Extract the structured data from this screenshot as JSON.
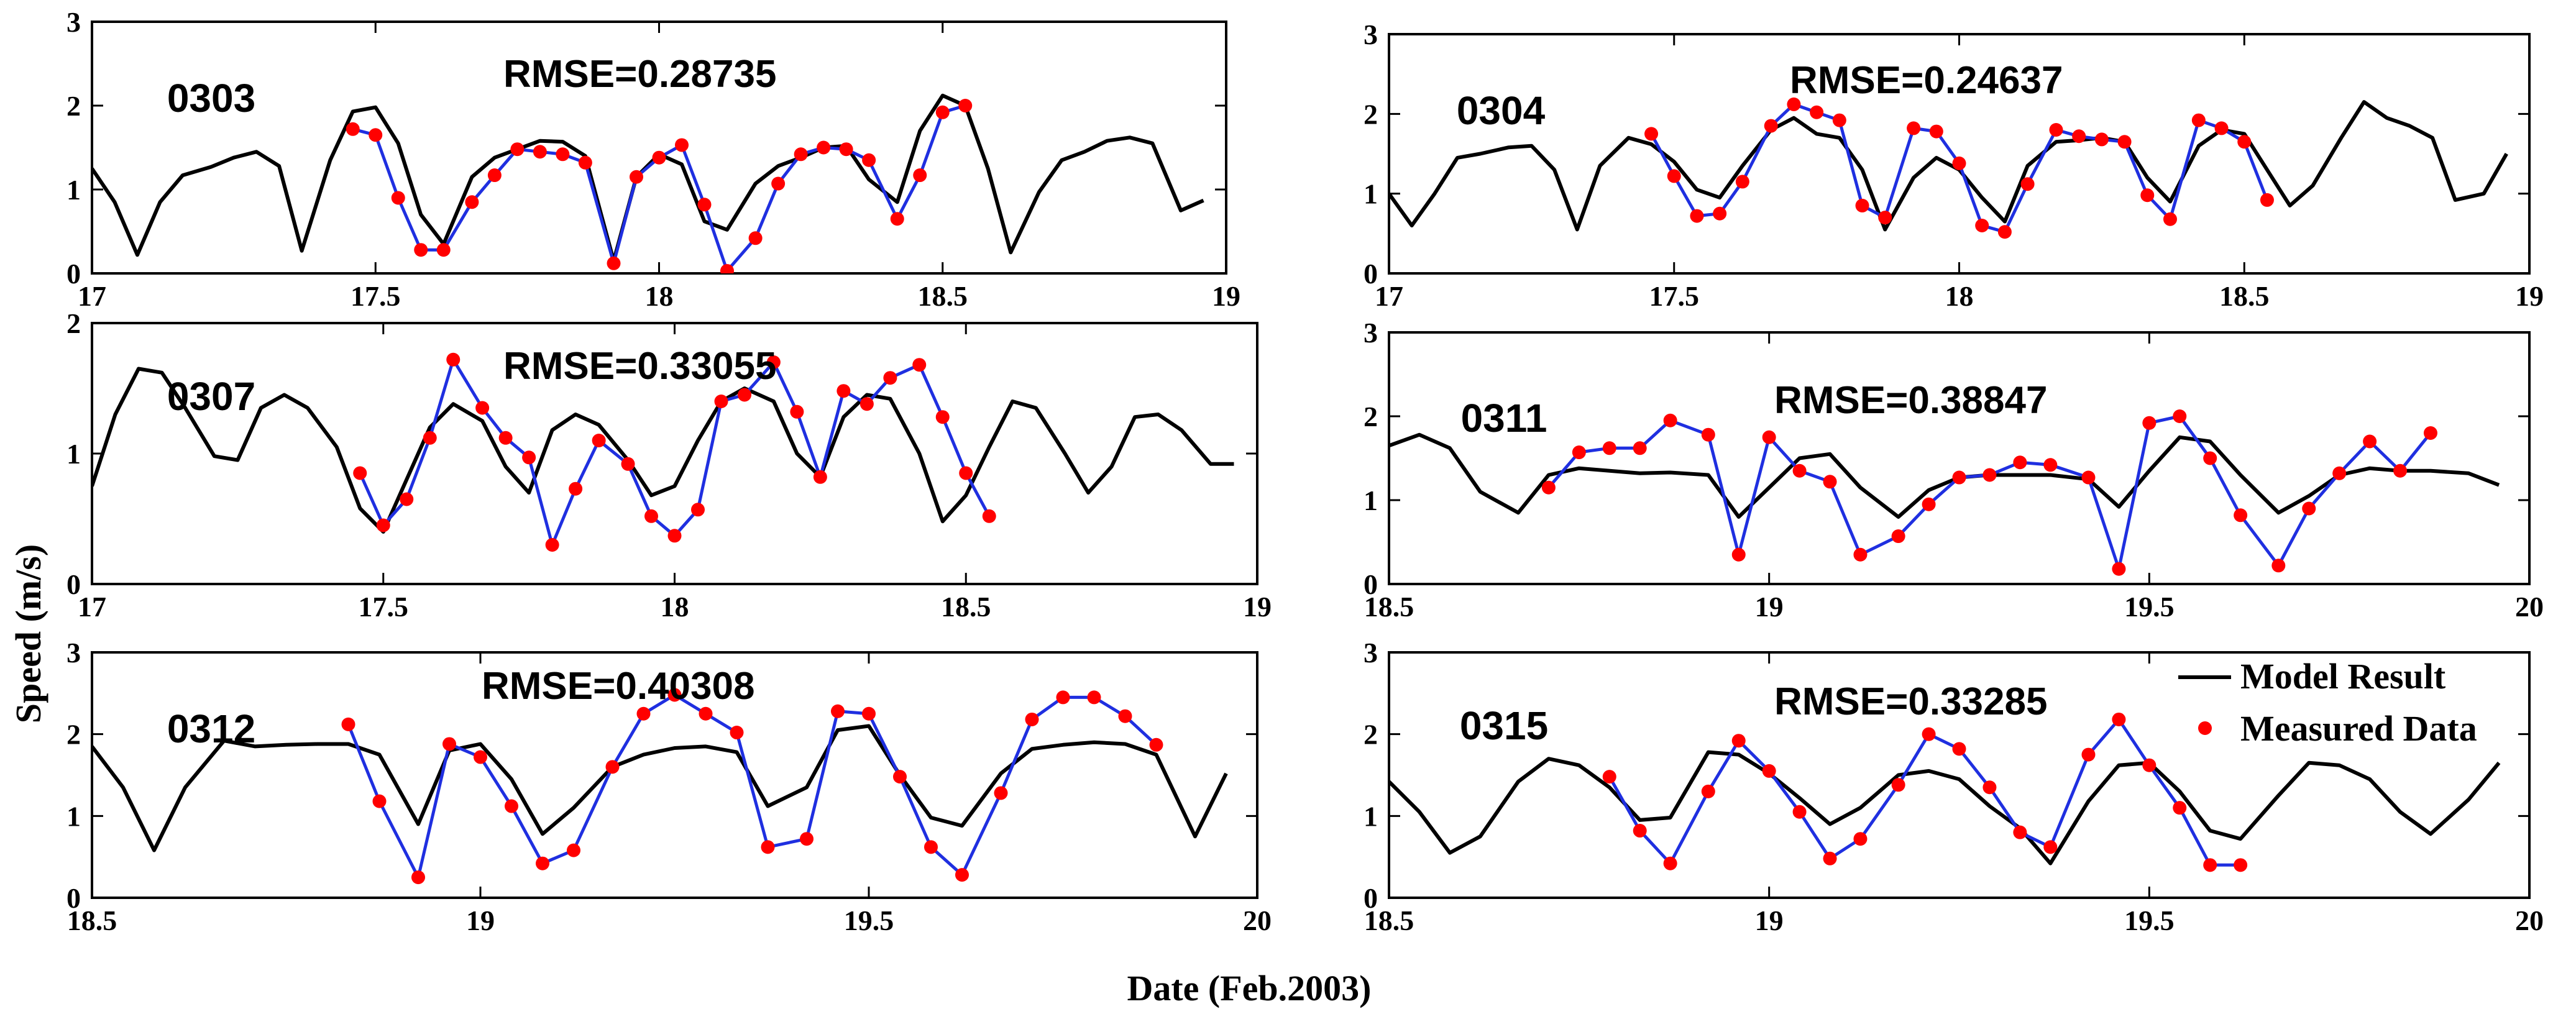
{
  "figure": {
    "ylabel": "Speed (m/s)",
    "xlabel": "Date (Feb.2003)",
    "legend": {
      "model_label": "Model Result",
      "measured_label": "Measured Data",
      "location": "top-right of bottom-right panel"
    },
    "colors": {
      "model": "#000000",
      "measured_line": "#1f2fe0",
      "measured_dot": "#ff0000"
    }
  },
  "chart_data": [
    {
      "type": "line",
      "name": "0303",
      "rmse_label": "RMSE=0.28735",
      "xlim": [
        17,
        19
      ],
      "ylim": [
        0,
        3
      ],
      "xticks": [
        17,
        17.5,
        18,
        18.5,
        19
      ],
      "xtick_labels": [
        "17",
        "17.5",
        "18",
        "18.5",
        "19"
      ],
      "yticks": [
        0,
        1,
        2,
        3
      ],
      "ytick_labels": [
        "0",
        "1",
        "2",
        "3"
      ],
      "model": {
        "x": [
          17,
          17.04,
          17.08,
          17.12,
          17.16,
          17.21,
          17.25,
          17.29,
          17.33,
          17.37,
          17.42,
          17.46,
          17.5,
          17.54,
          17.58,
          17.62,
          17.67,
          17.71,
          17.75,
          17.79,
          17.83,
          17.87,
          17.92,
          17.96,
          18,
          18.04,
          18.08,
          18.12,
          18.17,
          18.21,
          18.25,
          18.29,
          18.33,
          18.37,
          18.42,
          18.46,
          18.5,
          18.54,
          18.58,
          18.62,
          18.67,
          18.71,
          18.75,
          18.79,
          18.83,
          18.87,
          18.92,
          18.96
        ],
        "y": [
          1.25,
          0.85,
          0.22,
          0.85,
          1.17,
          1.27,
          1.38,
          1.45,
          1.28,
          0.27,
          1.35,
          1.93,
          1.98,
          1.55,
          0.7,
          0.35,
          1.15,
          1.38,
          1.48,
          1.58,
          1.57,
          1.4,
          0.15,
          1.15,
          1.42,
          1.3,
          0.62,
          0.52,
          1.07,
          1.28,
          1.38,
          1.5,
          1.52,
          1.12,
          0.85,
          1.7,
          2.12,
          2.0,
          1.25,
          0.25,
          0.97,
          1.35,
          1.45,
          1.58,
          1.62,
          1.55,
          0.75,
          0.87
        ]
      },
      "measured": {
        "x": [
          17.46,
          17.5,
          17.54,
          17.58,
          17.62,
          17.67,
          17.71,
          17.75,
          17.79,
          17.83,
          17.87,
          17.92,
          17.96,
          18,
          18.04,
          18.08,
          18.12,
          18.17,
          18.21,
          18.25,
          18.29,
          18.33,
          18.37,
          18.42,
          18.46,
          18.5,
          18.54
        ],
        "y": [
          1.72,
          1.65,
          0.9,
          0.28,
          0.28,
          0.85,
          1.17,
          1.48,
          1.45,
          1.42,
          1.32,
          0.12,
          1.15,
          1.38,
          1.53,
          0.82,
          0.03,
          0.42,
          1.07,
          1.42,
          1.5,
          1.48,
          1.35,
          0.65,
          1.17,
          1.92,
          2.0
        ]
      }
    },
    {
      "type": "line",
      "name": "0304",
      "rmse_label": "RMSE=0.24637",
      "xlim": [
        17,
        19
      ],
      "ylim": [
        0,
        3
      ],
      "xticks": [
        17,
        17.5,
        18,
        18.5,
        19
      ],
      "xtick_labels": [
        "17",
        "17.5",
        "18",
        "18.5",
        "19"
      ],
      "yticks": [
        0,
        1,
        2,
        3
      ],
      "ytick_labels": [
        "0",
        "1",
        "2",
        "3"
      ],
      "model": {
        "x": [
          17,
          17.04,
          17.08,
          17.12,
          17.16,
          17.21,
          17.25,
          17.29,
          17.33,
          17.37,
          17.42,
          17.46,
          17.5,
          17.54,
          17.58,
          17.62,
          17.67,
          17.71,
          17.75,
          17.79,
          17.83,
          17.87,
          17.92,
          17.96,
          18,
          18.04,
          18.08,
          18.12,
          18.17,
          18.21,
          18.25,
          18.29,
          18.33,
          18.37,
          18.42,
          18.46,
          18.5,
          18.54,
          18.58,
          18.62,
          18.67,
          18.71,
          18.75,
          18.79,
          18.83,
          18.87,
          18.92,
          18.96
        ],
        "y": [
          1.0,
          0.6,
          1.0,
          1.45,
          1.5,
          1.58,
          1.6,
          1.3,
          0.55,
          1.35,
          1.7,
          1.62,
          1.4,
          1.05,
          0.95,
          1.35,
          1.8,
          1.95,
          1.75,
          1.7,
          1.3,
          0.55,
          1.2,
          1.45,
          1.3,
          0.95,
          0.65,
          1.35,
          1.65,
          1.67,
          1.7,
          1.65,
          1.2,
          0.9,
          1.6,
          1.8,
          1.75,
          1.3,
          0.85,
          1.1,
          1.7,
          2.15,
          1.95,
          1.85,
          1.7,
          0.92,
          1.0,
          1.5
        ]
      },
      "measured": {
        "x": [
          17.46,
          17.5,
          17.54,
          17.58,
          17.62,
          17.67,
          17.71,
          17.75,
          17.79,
          17.83,
          17.87,
          17.92,
          17.96,
          18,
          18.04,
          18.08,
          18.12,
          18.17,
          18.21,
          18.25,
          18.29,
          18.33,
          18.37,
          18.42,
          18.46,
          18.5,
          18.54
        ],
        "y": [
          1.75,
          1.22,
          0.72,
          0.75,
          1.15,
          1.85,
          2.12,
          2.02,
          1.92,
          0.85,
          0.7,
          1.82,
          1.78,
          1.38,
          0.6,
          0.52,
          1.12,
          1.8,
          1.72,
          1.68,
          1.65,
          0.98,
          0.68,
          1.92,
          1.82,
          1.65,
          0.92
        ]
      }
    },
    {
      "type": "line",
      "name": "0307",
      "rmse_label": "RMSE=0.33055",
      "xlim": [
        17,
        19
      ],
      "ylim": [
        0,
        2
      ],
      "xticks": [
        17,
        17.5,
        18,
        18.5,
        19
      ],
      "xtick_labels": [
        "17",
        "17.5",
        "18",
        "18.5",
        "19"
      ],
      "yticks": [
        0,
        1,
        2
      ],
      "ytick_labels": [
        "0",
        "1",
        "2"
      ],
      "model": {
        "x": [
          17,
          17.04,
          17.08,
          17.12,
          17.16,
          17.21,
          17.25,
          17.29,
          17.33,
          17.37,
          17.42,
          17.46,
          17.5,
          17.54,
          17.58,
          17.62,
          17.67,
          17.71,
          17.75,
          17.79,
          17.83,
          17.87,
          17.92,
          17.96,
          18,
          18.04,
          18.08,
          18.12,
          18.17,
          18.21,
          18.25,
          18.29,
          18.33,
          18.37,
          18.42,
          18.46,
          18.5,
          18.54,
          18.58,
          18.62,
          18.67,
          18.71,
          18.75,
          18.79,
          18.83,
          18.87,
          18.92,
          18.96
        ],
        "y": [
          0.75,
          1.3,
          1.65,
          1.62,
          1.35,
          0.98,
          0.95,
          1.35,
          1.45,
          1.35,
          1.05,
          0.58,
          0.4,
          0.8,
          1.2,
          1.38,
          1.25,
          0.9,
          0.7,
          1.18,
          1.3,
          1.22,
          0.95,
          0.68,
          0.75,
          1.1,
          1.4,
          1.5,
          1.4,
          1.0,
          0.82,
          1.28,
          1.45,
          1.42,
          1.0,
          0.48,
          0.68,
          1.05,
          1.4,
          1.35,
          1.0,
          0.7,
          0.9,
          1.28,
          1.3,
          1.18,
          0.92,
          0.92
        ]
      },
      "measured": {
        "x": [
          17.46,
          17.5,
          17.54,
          17.58,
          17.62,
          17.67,
          17.71,
          17.75,
          17.79,
          17.83,
          17.87,
          17.92,
          17.96,
          18,
          18.04,
          18.08,
          18.12,
          18.17,
          18.21,
          18.25,
          18.29,
          18.33,
          18.37,
          18.42,
          18.46,
          18.5,
          18.54
        ],
        "y": [
          0.85,
          0.45,
          0.65,
          1.12,
          1.72,
          1.35,
          1.12,
          0.97,
          0.3,
          0.73,
          1.1,
          0.92,
          0.52,
          0.37,
          0.57,
          1.4,
          1.45,
          1.7,
          1.32,
          0.82,
          1.48,
          1.38,
          1.58,
          1.68,
          1.28,
          0.85,
          0.52
        ]
      }
    },
    {
      "type": "line",
      "name": "0311",
      "rmse_label": "RMSE=0.38847",
      "xlim": [
        18.5,
        20
      ],
      "ylim": [
        0,
        3
      ],
      "xticks": [
        18.5,
        19,
        19.5,
        20
      ],
      "xtick_labels": [
        "18.5",
        "19",
        "19.5",
        "20"
      ],
      "yticks": [
        0,
        1,
        2,
        3
      ],
      "ytick_labels": [
        "0",
        "1",
        "2",
        "3"
      ],
      "model": {
        "x": [
          18.5,
          18.54,
          18.58,
          18.62,
          18.67,
          18.71,
          18.75,
          18.79,
          18.83,
          18.87,
          18.92,
          18.96,
          19,
          19.04,
          19.08,
          19.12,
          19.17,
          19.21,
          19.25,
          19.29,
          19.33,
          19.37,
          19.42,
          19.46,
          19.5,
          19.54,
          19.58,
          19.62,
          19.67,
          19.71,
          19.75,
          19.79,
          19.83,
          19.87,
          19.92,
          19.96
        ],
        "y": [
          1.65,
          1.78,
          1.62,
          1.1,
          0.85,
          1.3,
          1.38,
          1.35,
          1.32,
          1.33,
          1.3,
          0.8,
          1.15,
          1.5,
          1.55,
          1.15,
          0.8,
          1.12,
          1.27,
          1.3,
          1.3,
          1.3,
          1.25,
          0.92,
          1.35,
          1.75,
          1.7,
          1.3,
          0.85,
          1.05,
          1.3,
          1.38,
          1.35,
          1.35,
          1.32,
          1.18
        ]
      },
      "measured": {
        "x": [
          18.71,
          18.75,
          18.79,
          18.83,
          18.87,
          18.92,
          18.96,
          19,
          19.04,
          19.08,
          19.12,
          19.17,
          19.21,
          19.25,
          19.29,
          19.33,
          19.37,
          19.42,
          19.46,
          19.5,
          19.54,
          19.58,
          19.62,
          19.67,
          19.71,
          19.75,
          19.79,
          19.83,
          19.87
        ],
        "y": [
          1.15,
          1.57,
          1.62,
          1.62,
          1.95,
          1.78,
          0.35,
          1.75,
          1.35,
          1.22,
          0.35,
          0.57,
          0.95,
          1.27,
          1.3,
          1.45,
          1.42,
          1.27,
          0.18,
          1.92,
          2.0,
          1.5,
          0.82,
          0.22,
          0.9,
          1.32,
          1.7,
          1.35,
          1.8
        ]
      }
    },
    {
      "type": "line",
      "name": "0312",
      "rmse_label": "RMSE=0.40308",
      "xlim": [
        18.5,
        20
      ],
      "ylim": [
        0,
        3
      ],
      "xticks": [
        18.5,
        19,
        19.5,
        20
      ],
      "xtick_labels": [
        "18.5",
        "19",
        "19.5",
        "20"
      ],
      "yticks": [
        0,
        1,
        2,
        3
      ],
      "ytick_labels": [
        "0",
        "1",
        "2",
        "3"
      ],
      "model": {
        "x": [
          18.5,
          18.54,
          18.58,
          18.62,
          18.67,
          18.71,
          18.75,
          18.79,
          18.83,
          18.87,
          18.92,
          18.96,
          19,
          19.04,
          19.08,
          19.12,
          19.17,
          19.21,
          19.25,
          19.29,
          19.33,
          19.37,
          19.42,
          19.46,
          19.5,
          19.54,
          19.58,
          19.62,
          19.67,
          19.71,
          19.75,
          19.79,
          19.83,
          19.87,
          19.92,
          19.96
        ],
        "y": [
          1.85,
          1.35,
          0.58,
          1.35,
          1.92,
          1.85,
          1.87,
          1.88,
          1.88,
          1.75,
          0.9,
          1.8,
          1.88,
          1.45,
          0.78,
          1.1,
          1.6,
          1.75,
          1.83,
          1.85,
          1.78,
          1.12,
          1.35,
          2.05,
          2.1,
          1.5,
          0.98,
          0.88,
          1.52,
          1.82,
          1.87,
          1.9,
          1.88,
          1.75,
          0.75,
          1.52
        ]
      },
      "measured": {
        "x": [
          18.83,
          18.87,
          18.92,
          18.96,
          19,
          19.04,
          19.08,
          19.12,
          19.17,
          19.21,
          19.25,
          19.29,
          19.33,
          19.37,
          19.42,
          19.46,
          19.5,
          19.54,
          19.58,
          19.62,
          19.67,
          19.71,
          19.75,
          19.79,
          19.83,
          19.87
        ],
        "y": [
          2.12,
          1.18,
          0.25,
          1.88,
          1.72,
          1.12,
          0.42,
          0.58,
          1.6,
          2.25,
          2.48,
          2.25,
          2.02,
          0.62,
          0.72,
          2.28,
          2.25,
          1.48,
          0.62,
          0.28,
          1.28,
          2.18,
          2.45,
          2.45,
          2.22,
          1.87
        ]
      }
    },
    {
      "type": "line",
      "name": "0315",
      "rmse_label": "RMSE=0.33285",
      "xlim": [
        18.5,
        20
      ],
      "ylim": [
        0,
        3
      ],
      "xticks": [
        18.5,
        19,
        19.5,
        20
      ],
      "xtick_labels": [
        "18.5",
        "19",
        "19.5",
        "20"
      ],
      "yticks": [
        0,
        1,
        2,
        3
      ],
      "ytick_labels": [
        "0",
        "1",
        "2",
        "3"
      ],
      "model": {
        "x": [
          18.5,
          18.54,
          18.58,
          18.62,
          18.67,
          18.71,
          18.75,
          18.79,
          18.83,
          18.87,
          18.92,
          18.96,
          19,
          19.04,
          19.08,
          19.12,
          19.17,
          19.21,
          19.25,
          19.29,
          19.33,
          19.37,
          19.42,
          19.46,
          19.5,
          19.54,
          19.58,
          19.62,
          19.67,
          19.71,
          19.75,
          19.79,
          19.83,
          19.87,
          19.92,
          19.96
        ],
        "y": [
          1.42,
          1.05,
          0.55,
          0.75,
          1.42,
          1.7,
          1.62,
          1.35,
          0.95,
          0.98,
          1.78,
          1.75,
          1.52,
          1.22,
          0.9,
          1.1,
          1.5,
          1.55,
          1.45,
          1.12,
          0.85,
          0.42,
          1.18,
          1.62,
          1.65,
          1.3,
          0.82,
          0.72,
          1.25,
          1.65,
          1.62,
          1.45,
          1.05,
          0.78,
          1.2,
          1.65
        ]
      },
      "measured": {
        "x": [
          18.79,
          18.83,
          18.87,
          18.92,
          18.96,
          19,
          19.04,
          19.08,
          19.12,
          19.17,
          19.21,
          19.25,
          19.29,
          19.33,
          19.37,
          19.42,
          19.46,
          19.5,
          19.54,
          19.58,
          19.62
        ],
        "y": [
          1.48,
          0.82,
          0.42,
          1.3,
          1.92,
          1.55,
          1.05,
          0.48,
          0.72,
          1.38,
          2.0,
          1.82,
          1.35,
          0.8,
          0.62,
          1.75,
          2.18,
          1.62,
          1.1,
          0.4,
          0.4
        ]
      }
    }
  ]
}
